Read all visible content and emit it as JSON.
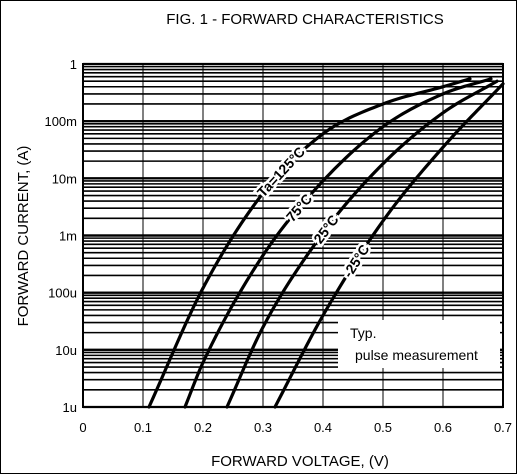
{
  "chart_data": {
    "type": "line",
    "title": "FIG. 1 - FORWARD CHARACTERISTICS",
    "xlabel": "FORWARD  VOLTAGE, (V)",
    "ylabel": "FORWARD  CURRENT, (A)",
    "xlim": [
      0,
      0.7
    ],
    "ylim": [
      1e-06,
      1
    ],
    "yscale": "log",
    "grid": true,
    "xticks": [
      "0",
      "0.1",
      "0.2",
      "0.3",
      "0.4",
      "0.5",
      "0.6",
      "0.7"
    ],
    "yticks": [
      "1u",
      "10u",
      "100u",
      "1m",
      "10m",
      "100m",
      "1"
    ],
    "series": [
      {
        "name": "Ta=125°C",
        "x": [
          0.11,
          0.2,
          0.3,
          0.4,
          0.5,
          0.6,
          0.645
        ],
        "y": [
          1e-06,
          0.00012,
          0.0055,
          0.06,
          0.2,
          0.4,
          0.55
        ]
      },
      {
        "name": "75°C",
        "x": [
          0.17,
          0.2,
          0.3,
          0.4,
          0.5,
          0.6,
          0.68
        ],
        "y": [
          1e-06,
          6e-06,
          0.00045,
          0.009,
          0.08,
          0.3,
          0.55
        ]
      },
      {
        "name": "25°C",
        "x": [
          0.24,
          0.3,
          0.4,
          0.5,
          0.6,
          0.69
        ],
        "y": [
          1e-06,
          2.5e-05,
          0.0011,
          0.018,
          0.14,
          0.5
        ]
      },
      {
        "name": "-25°C",
        "x": [
          0.32,
          0.4,
          0.5,
          0.6,
          0.7
        ],
        "y": [
          1e-06,
          4e-05,
          0.0018,
          0.035,
          0.45
        ]
      }
    ],
    "annotations": [
      "Typ.",
      "pulse measurement"
    ],
    "colors": {
      "line": "#000000",
      "grid": "#000000"
    }
  }
}
